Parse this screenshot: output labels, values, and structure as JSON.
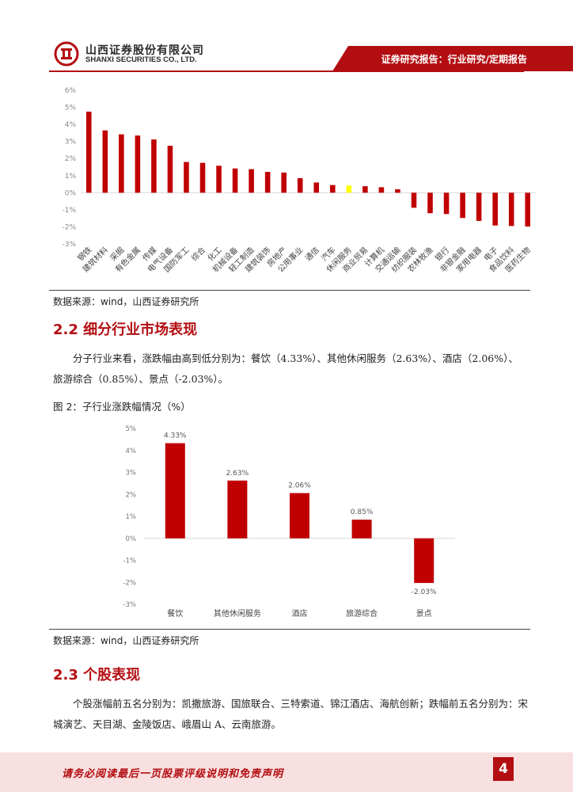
{
  "header": {
    "company_cn": "山西证券股份有限公司",
    "company_en": "SHANXI SECURITIES CO., LTD.",
    "report_type": "证券研究报告：行业研究/定期报告",
    "brand_color": "#b30e12"
  },
  "chart_data": [
    {
      "type": "bar",
      "categories": [
        "钢铁",
        "建筑材料",
        "采掘",
        "有色金属",
        "传媒",
        "电气设备",
        "国防军工",
        "综合",
        "化工",
        "机械设备",
        "轻工制造",
        "建筑装饰",
        "房地产",
        "公用事业",
        "通信",
        "汽车",
        "休闲服务",
        "商业贸易",
        "计算机",
        "交通运输",
        "纺织服装",
        "农林牧渔",
        "银行",
        "非银金融",
        "家用电器",
        "电子",
        "食品饮料",
        "医药生物"
      ],
      "values": [
        4.75,
        3.65,
        3.42,
        3.35,
        3.12,
        2.75,
        1.8,
        1.75,
        1.58,
        1.42,
        1.38,
        1.22,
        1.18,
        0.85,
        0.6,
        0.45,
        0.42,
        0.38,
        0.32,
        0.2,
        -0.88,
        -1.2,
        -1.25,
        -1.48,
        -1.65,
        -1.92,
        -1.95,
        -1.98
      ],
      "highlight": "休闲服务",
      "ylim": [
        -3,
        6
      ],
      "yticks": [
        "-3%",
        "-2%",
        "-1%",
        "0%",
        "1%",
        "2%",
        "3%",
        "4%",
        "5%",
        "6%"
      ],
      "bar_color": "#c00000",
      "highlight_color": "#ffff00"
    },
    {
      "type": "bar",
      "categories": [
        "餐饮",
        "其他休闲服务",
        "酒店",
        "旅游综合",
        "景点"
      ],
      "values": [
        4.33,
        2.63,
        2.06,
        0.85,
        -2.03
      ],
      "data_labels": [
        "4.33%",
        "2.63%",
        "2.06%",
        "0.85%",
        "-2.03%"
      ],
      "ylim": [
        -3,
        5
      ],
      "yticks": [
        "-3%",
        "-2%",
        "-1%",
        "0%",
        "1%",
        "2%",
        "3%",
        "4%",
        "5%"
      ],
      "bar_color": "#c00000"
    }
  ],
  "source1": "数据来源：wind，山西证券研究所",
  "section_2_2": {
    "title": "2.2 细分行业市场表现",
    "text": "分子行业来看，涨跌幅由高到低分别为：餐饮（4.33%）、其他休闲服务（2.63%）、酒店（2.06%）、旅游综合（0.85%）、景点（-2.03%）。"
  },
  "figure2_caption": "图 2：子行业涨跌幅情况（%）",
  "source2": "数据来源：wind，山西证券研究所",
  "section_2_3": {
    "title": "2.3 个股表现",
    "text": "个股涨幅前五名分别为：凯撒旅游、国旅联合、三特索道、锦江酒店、海航创新；跌幅前五名分别为：宋城演艺、天目湖、金陵饭店、峨眉山 A、云南旅游。"
  },
  "footer": {
    "disclaimer": "请务必阅读最后一页股票评级说明和免责声明",
    "page_number": "4"
  }
}
